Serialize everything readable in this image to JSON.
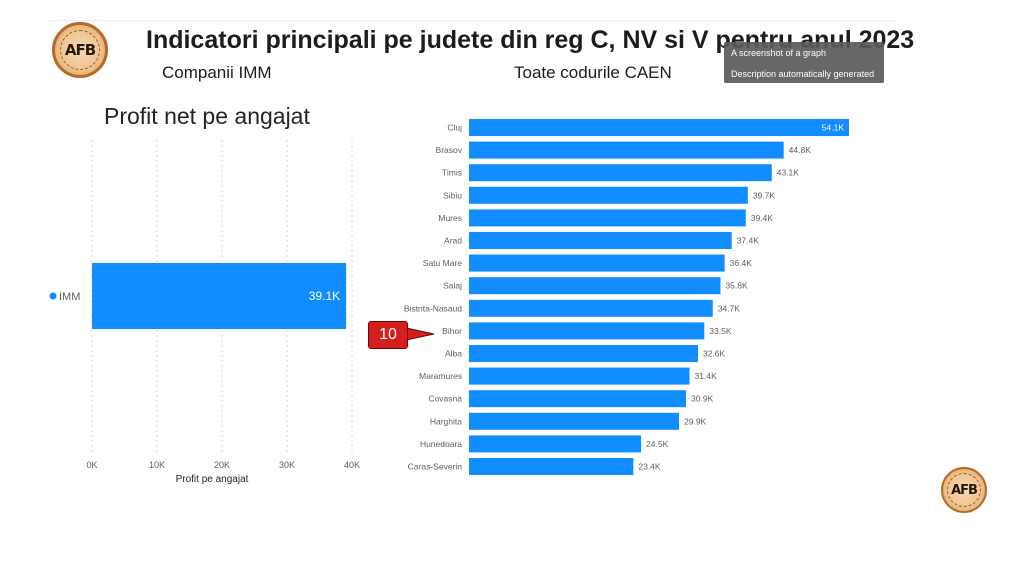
{
  "header": {
    "title": "Indicatori principali pe judete din reg C, NV si V pentru anul 2023",
    "subtitle_left": "Companii IMM",
    "subtitle_right": "Toate codurile CAEN",
    "logo_text": "AFB"
  },
  "tooltip": {
    "line1": "A screenshot of a graph",
    "line2": "Description automatically generated"
  },
  "callout": {
    "label": "10"
  },
  "colors": {
    "bar": "#118dff",
    "callout": "#d41f1f"
  },
  "chart_data": [
    {
      "type": "bar",
      "orientation": "horizontal",
      "title": "Profit net pe angajat",
      "xlabel": "Profit pe angajat",
      "xlim": [
        0,
        40000
      ],
      "ticks": [
        {
          "value": 0,
          "label": "0K"
        },
        {
          "value": 10000,
          "label": "10K"
        },
        {
          "value": 20000,
          "label": "20K"
        },
        {
          "value": 30000,
          "label": "30K"
        },
        {
          "value": 40000,
          "label": "40K"
        }
      ],
      "grid": true,
      "legend": "left",
      "categories": [
        "IMM"
      ],
      "values": [
        39100
      ],
      "labels": [
        "39.1K"
      ]
    },
    {
      "type": "bar",
      "orientation": "horizontal",
      "xlim": [
        0,
        54100
      ],
      "categories": [
        "Cluj",
        "Brasov",
        "Timis",
        "Sibiu",
        "Mures",
        "Arad",
        "Satu Mare",
        "Salaj",
        "Bistrita-Nasaud",
        "Bihor",
        "Alba",
        "Maramures",
        "Covasna",
        "Harghita",
        "Hunedoara",
        "Caras-Severin"
      ],
      "values": [
        54100,
        44800,
        43100,
        39700,
        39400,
        37400,
        36400,
        35800,
        34700,
        33500,
        32600,
        31400,
        30900,
        29900,
        24500,
        23400
      ],
      "labels": [
        "54.1K",
        "44.8K",
        "43.1K",
        "39.7K",
        "39.4K",
        "37.4K",
        "36.4K",
        "35.8K",
        "34.7K",
        "33.5K",
        "32.6K",
        "31.4K",
        "30.9K",
        "29.9K",
        "24.5K",
        "23.4K"
      ]
    }
  ]
}
